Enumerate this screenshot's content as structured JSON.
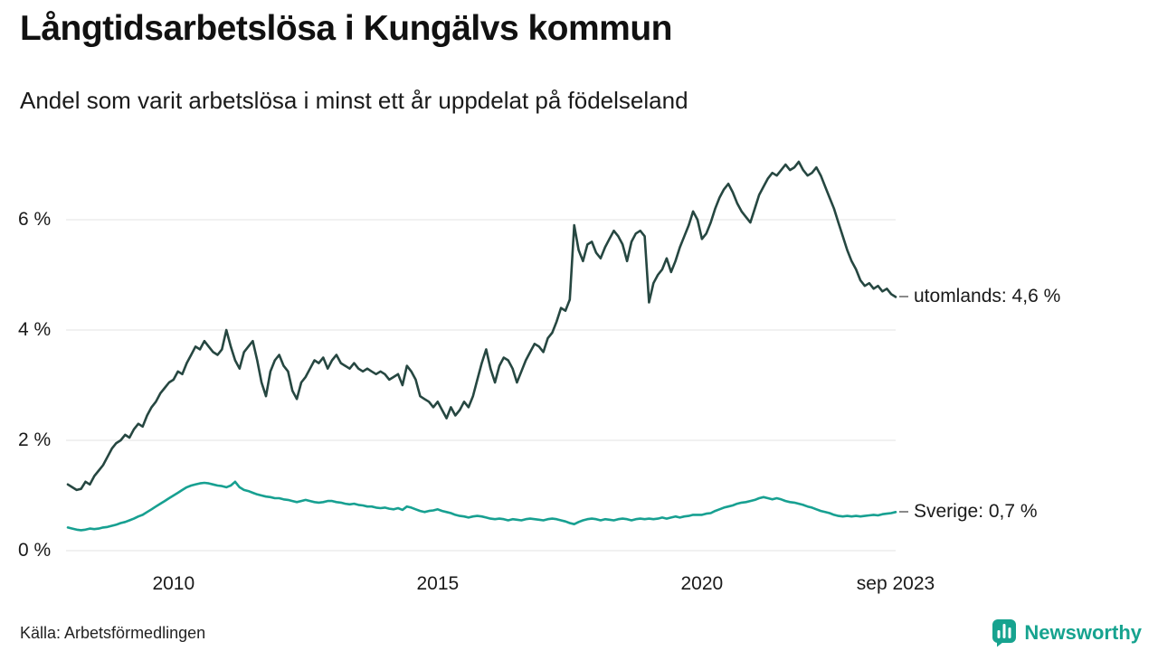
{
  "chart_data": {
    "type": "line",
    "title": "Långtidsarbetslösa i Kungälvs kommun",
    "subtitle": "Andel som varit arbetslösa i minst ett år uppdelat på födelseland",
    "x_start": "2008-01",
    "x_end": "2023-09",
    "x_interval": "monthly",
    "x_ticks": [
      "2010",
      "2015",
      "2020",
      "sep 2023"
    ],
    "x_tick_indices": [
      24,
      84,
      144,
      188
    ],
    "y_ticks": [
      "6 %",
      "4 %",
      "2 %",
      "0 %"
    ],
    "y_tick_values": [
      6,
      4,
      2,
      0
    ],
    "ylim": [
      0,
      7.4
    ],
    "grid": "horizontal",
    "legend_position": "right-end-labels",
    "source": "Källa: Arbetsförmedlingen",
    "series": [
      {
        "id": "utomlands",
        "name": "utomlands",
        "color": "#264741",
        "end_label": "utomlands: 4,6 %",
        "end_value": 4.6,
        "values": [
          1.2,
          1.15,
          1.1,
          1.12,
          1.25,
          1.2,
          1.35,
          1.45,
          1.55,
          1.7,
          1.85,
          1.95,
          2.0,
          2.1,
          2.05,
          2.2,
          2.3,
          2.25,
          2.45,
          2.6,
          2.7,
          2.85,
          2.95,
          3.05,
          3.1,
          3.25,
          3.2,
          3.4,
          3.55,
          3.7,
          3.65,
          3.8,
          3.7,
          3.6,
          3.55,
          3.65,
          4.0,
          3.7,
          3.45,
          3.3,
          3.6,
          3.7,
          3.8,
          3.45,
          3.05,
          2.8,
          3.25,
          3.45,
          3.55,
          3.35,
          3.25,
          2.9,
          2.75,
          3.05,
          3.15,
          3.3,
          3.45,
          3.4,
          3.5,
          3.3,
          3.45,
          3.55,
          3.4,
          3.35,
          3.3,
          3.4,
          3.3,
          3.25,
          3.3,
          3.25,
          3.2,
          3.25,
          3.2,
          3.1,
          3.15,
          3.2,
          3.0,
          3.35,
          3.25,
          3.1,
          2.8,
          2.75,
          2.7,
          2.6,
          2.7,
          2.55,
          2.4,
          2.6,
          2.45,
          2.55,
          2.7,
          2.6,
          2.8,
          3.1,
          3.4,
          3.65,
          3.3,
          3.05,
          3.35,
          3.5,
          3.45,
          3.3,
          3.05,
          3.25,
          3.45,
          3.6,
          3.75,
          3.7,
          3.6,
          3.85,
          3.95,
          4.15,
          4.4,
          4.35,
          4.55,
          5.9,
          5.45,
          5.25,
          5.55,
          5.6,
          5.4,
          5.3,
          5.5,
          5.65,
          5.8,
          5.7,
          5.55,
          5.25,
          5.6,
          5.75,
          5.8,
          5.7,
          4.5,
          4.85,
          5.0,
          5.1,
          5.3,
          5.05,
          5.25,
          5.5,
          5.7,
          5.9,
          6.15,
          6.0,
          5.65,
          5.75,
          5.95,
          6.2,
          6.4,
          6.55,
          6.65,
          6.5,
          6.3,
          6.15,
          6.05,
          5.95,
          6.2,
          6.45,
          6.6,
          6.75,
          6.85,
          6.8,
          6.9,
          7.0,
          6.9,
          6.95,
          7.05,
          6.9,
          6.8,
          6.85,
          6.95,
          6.8,
          6.6,
          6.4,
          6.2,
          5.95,
          5.7,
          5.45,
          5.25,
          5.1,
          4.9,
          4.8,
          4.85,
          4.75,
          4.8,
          4.7,
          4.75,
          4.65,
          4.6
        ]
      },
      {
        "id": "sverige",
        "name": "Sverige",
        "color": "#17a091",
        "end_label": "Sverige: 0,7 %",
        "end_value": 0.7,
        "values": [
          0.42,
          0.4,
          0.38,
          0.37,
          0.38,
          0.4,
          0.39,
          0.4,
          0.42,
          0.43,
          0.45,
          0.47,
          0.5,
          0.52,
          0.55,
          0.58,
          0.62,
          0.65,
          0.7,
          0.75,
          0.8,
          0.85,
          0.9,
          0.95,
          1.0,
          1.05,
          1.1,
          1.15,
          1.18,
          1.2,
          1.22,
          1.23,
          1.22,
          1.2,
          1.18,
          1.17,
          1.15,
          1.18,
          1.25,
          1.15,
          1.1,
          1.08,
          1.05,
          1.02,
          1.0,
          0.98,
          0.97,
          0.95,
          0.95,
          0.93,
          0.92,
          0.9,
          0.88,
          0.9,
          0.92,
          0.9,
          0.88,
          0.87,
          0.88,
          0.9,
          0.9,
          0.88,
          0.87,
          0.85,
          0.84,
          0.85,
          0.83,
          0.82,
          0.8,
          0.8,
          0.78,
          0.77,
          0.78,
          0.76,
          0.75,
          0.77,
          0.74,
          0.8,
          0.78,
          0.75,
          0.72,
          0.7,
          0.72,
          0.73,
          0.75,
          0.72,
          0.7,
          0.68,
          0.65,
          0.63,
          0.62,
          0.6,
          0.62,
          0.63,
          0.62,
          0.6,
          0.58,
          0.57,
          0.58,
          0.57,
          0.55,
          0.57,
          0.56,
          0.55,
          0.57,
          0.58,
          0.57,
          0.56,
          0.55,
          0.57,
          0.58,
          0.57,
          0.55,
          0.53,
          0.5,
          0.48,
          0.52,
          0.55,
          0.57,
          0.58,
          0.57,
          0.55,
          0.57,
          0.56,
          0.55,
          0.57,
          0.58,
          0.57,
          0.55,
          0.57,
          0.58,
          0.57,
          0.58,
          0.57,
          0.58,
          0.6,
          0.58,
          0.6,
          0.62,
          0.6,
          0.62,
          0.63,
          0.65,
          0.65,
          0.65,
          0.67,
          0.68,
          0.72,
          0.75,
          0.78,
          0.8,
          0.82,
          0.85,
          0.87,
          0.88,
          0.9,
          0.92,
          0.95,
          0.97,
          0.95,
          0.93,
          0.95,
          0.93,
          0.9,
          0.88,
          0.87,
          0.85,
          0.83,
          0.8,
          0.78,
          0.75,
          0.72,
          0.7,
          0.68,
          0.65,
          0.63,
          0.62,
          0.63,
          0.62,
          0.63,
          0.62,
          0.63,
          0.64,
          0.65,
          0.64,
          0.66,
          0.67,
          0.68,
          0.7
        ]
      }
    ]
  },
  "footer": {
    "brand": "Newsworthy"
  }
}
